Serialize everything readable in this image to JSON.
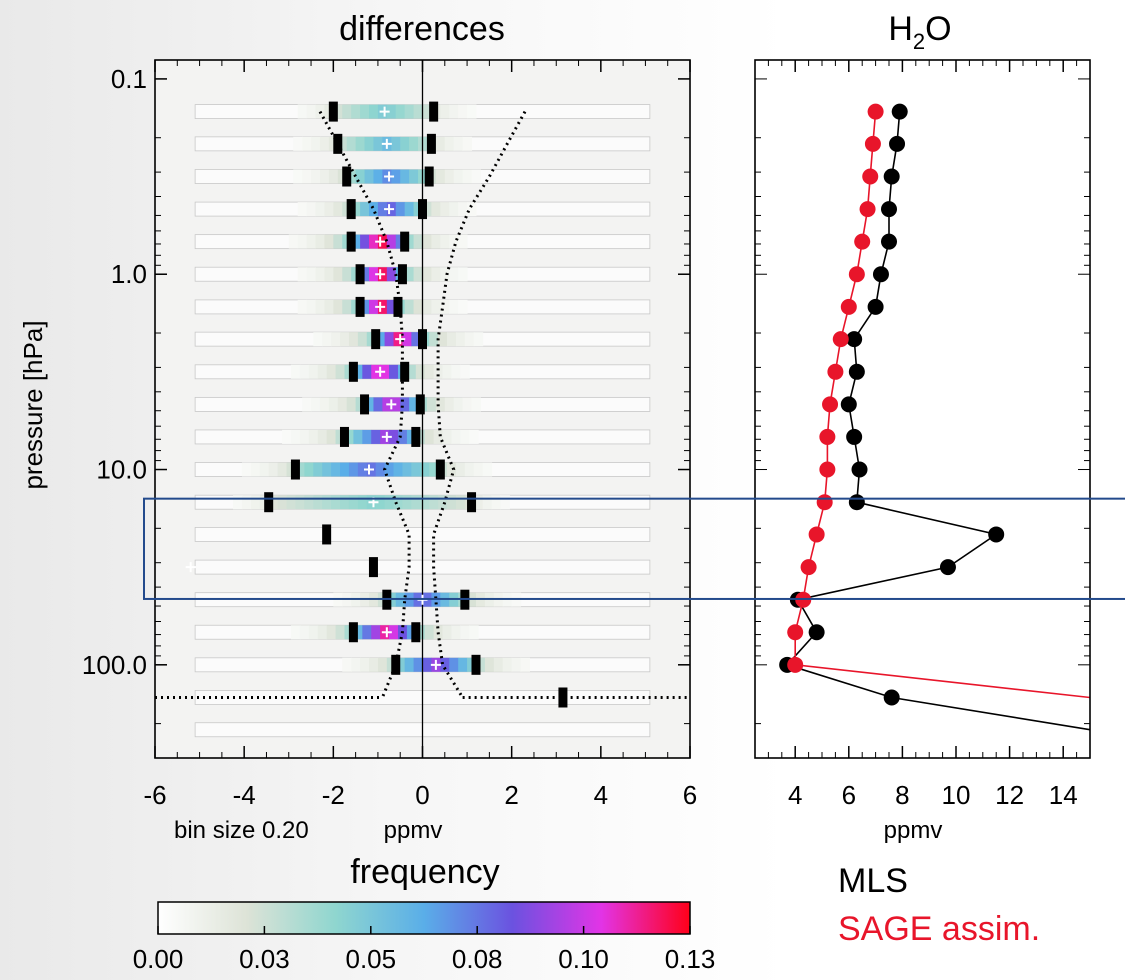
{
  "chart_data": [
    {
      "type": "heatmap",
      "title": "differences",
      "xlabel": "ppmv",
      "ylabel": "pressure [hPa]",
      "note": "bin size 0.20",
      "xlim": [
        -6,
        6
      ],
      "ylim_log_pressure": [
        0.08,
        300
      ],
      "x_ticks": [
        "-6",
        "-4",
        "-2",
        "0",
        "2",
        "4",
        "6"
      ],
      "y_ticks": [
        {
          "p": 0.1,
          "label": "0.1"
        },
        {
          "p": 1.0,
          "label": "1.0"
        },
        {
          "p": 10.0,
          "label": "10.0"
        },
        {
          "p": 100.0,
          "label": "100.0"
        }
      ],
      "levels": [
        {
          "p": 0.147,
          "q_lo": -2.0,
          "q_hi": 0.25,
          "mean": -0.85,
          "freq": 0.05
        },
        {
          "p": 0.215,
          "q_lo": -1.9,
          "q_hi": 0.2,
          "mean": -0.8,
          "freq": 0.058
        },
        {
          "p": 0.316,
          "q_lo": -1.7,
          "q_hi": 0.15,
          "mean": -0.75,
          "freq": 0.075
        },
        {
          "p": 0.464,
          "q_lo": -1.6,
          "q_hi": 0.0,
          "mean": -0.75,
          "freq": 0.085
        },
        {
          "p": 0.681,
          "q_lo": -1.6,
          "q_hi": -0.4,
          "mean": -0.95,
          "freq": 0.13
        },
        {
          "p": 1.0,
          "q_lo": -1.4,
          "q_hi": -0.45,
          "mean": -0.95,
          "freq": 0.13
        },
        {
          "p": 1.47,
          "q_lo": -1.4,
          "q_hi": -0.55,
          "mean": -0.95,
          "freq": 0.13
        },
        {
          "p": 2.15,
          "q_lo": -1.05,
          "q_hi": 0.0,
          "mean": -0.5,
          "freq": 0.125
        },
        {
          "p": 3.16,
          "q_lo": -1.55,
          "q_hi": -0.4,
          "mean": -0.95,
          "freq": 0.12
        },
        {
          "p": 4.64,
          "q_lo": -1.3,
          "q_hi": -0.05,
          "mean": -0.7,
          "freq": 0.11
        },
        {
          "p": 6.81,
          "q_lo": -1.75,
          "q_hi": -0.15,
          "mean": -0.8,
          "freq": 0.1
        },
        {
          "p": 10.0,
          "q_lo": -2.85,
          "q_hi": 0.4,
          "mean": -1.2,
          "freq": 0.08
        },
        {
          "p": 14.7,
          "q_lo": -3.45,
          "q_hi": 1.1,
          "mean": -1.1,
          "freq": 0.045
        },
        {
          "p": 21.5,
          "q_lo": -2.15,
          "q_hi": null,
          "mean": null,
          "freq": 0.01
        },
        {
          "p": 31.6,
          "q_lo": -1.1,
          "q_hi": null,
          "mean": -5.2,
          "freq": 0.01
        },
        {
          "p": 46.4,
          "q_lo": -0.8,
          "q_hi": 0.95,
          "mean": 0.0,
          "freq": 0.085
        },
        {
          "p": 68.1,
          "q_lo": -1.55,
          "q_hi": -0.15,
          "mean": -0.8,
          "freq": 0.12
        },
        {
          "p": 100.0,
          "q_lo": -0.6,
          "q_hi": 1.2,
          "mean": 0.3,
          "freq": 0.095
        },
        {
          "p": 147.0,
          "q_lo": 3.15,
          "q_hi": null,
          "mean": null,
          "freq": 0.0
        },
        {
          "p": 215.0,
          "q_lo": null,
          "q_hi": null,
          "mean": null,
          "freq": 0.0
        }
      ],
      "error_bounds": {
        "p": [
          0.147,
          0.215,
          0.316,
          0.464,
          0.681,
          1.0,
          1.47,
          2.15,
          3.16,
          4.64,
          6.81,
          10.0,
          14.7,
          21.5,
          31.6,
          46.4,
          68.1,
          100.0,
          147.0
        ],
        "left": [
          -2.3,
          -1.9,
          -1.5,
          -1.1,
          -0.8,
          -0.6,
          -0.5,
          -0.45,
          -0.45,
          -0.45,
          -0.5,
          -0.85,
          -0.6,
          -0.3,
          -0.3,
          -0.4,
          -0.45,
          -0.6,
          -0.9
        ],
        "right": [
          2.3,
          1.9,
          1.5,
          1.05,
          0.75,
          0.55,
          0.45,
          0.35,
          0.35,
          0.35,
          0.4,
          0.7,
          0.5,
          0.25,
          0.25,
          0.3,
          0.35,
          0.45,
          0.9
        ]
      },
      "horizontal_dotted_line_p": 147.0
    },
    {
      "type": "line",
      "title": "H2O",
      "title_base": "H",
      "title_sub": "2",
      "title_tail": "O",
      "xlabel": "ppmv",
      "xlim": [
        2.5,
        15
      ],
      "x_ticks": [
        "4",
        "6",
        "8",
        "10",
        "12",
        "14"
      ],
      "series": [
        {
          "name": "MLS",
          "color": "#000000",
          "p": [
            0.147,
            0.215,
            0.316,
            0.464,
            0.681,
            1.0,
            1.47,
            2.15,
            3.16,
            4.64,
            6.81,
            10.0,
            14.7,
            21.5,
            31.6,
            46.4,
            68.1,
            100.0,
            147.0,
            215.0
          ],
          "values": [
            7.9,
            7.8,
            7.6,
            7.5,
            7.5,
            7.2,
            7.0,
            6.2,
            6.3,
            6.0,
            6.2,
            6.4,
            6.3,
            11.5,
            9.7,
            4.1,
            4.8,
            3.7,
            7.6,
            15.0
          ],
          "markers": [
            true,
            true,
            true,
            true,
            true,
            true,
            true,
            true,
            true,
            true,
            true,
            true,
            true,
            true,
            true,
            true,
            true,
            true,
            true,
            false
          ]
        },
        {
          "name": "SAGE assim.",
          "color": "#e8152a",
          "p": [
            0.147,
            0.215,
            0.316,
            0.464,
            0.681,
            1.0,
            1.47,
            2.15,
            3.16,
            4.64,
            6.81,
            10.0,
            14.7,
            21.5,
            31.6,
            46.4,
            68.1,
            100.0,
            147.0
          ],
          "values": [
            7.0,
            6.9,
            6.8,
            6.7,
            6.5,
            6.3,
            6.0,
            5.7,
            5.5,
            5.3,
            5.2,
            5.2,
            5.1,
            4.8,
            4.5,
            4.3,
            4.0,
            4.0,
            15.0
          ],
          "markers": [
            true,
            true,
            true,
            true,
            true,
            true,
            true,
            true,
            true,
            true,
            true,
            true,
            true,
            true,
            true,
            true,
            true,
            true,
            false
          ]
        }
      ]
    }
  ],
  "colorbar": {
    "label": "frequency",
    "ticks": [
      "0.00",
      "0.03",
      "0.05",
      "0.08",
      "0.10",
      "0.13"
    ],
    "range": [
      0.0,
      0.13
    ],
    "stops": [
      "#ffffff",
      "#dde3d7",
      "#8fd6cf",
      "#5aaee8",
      "#6b52e0",
      "#e234e6",
      "#ff0019"
    ]
  },
  "legend": {
    "mls": {
      "label": "MLS",
      "color": "#000000"
    },
    "sage": {
      "label": "SAGE assim.",
      "color": "#e8152a"
    }
  },
  "highlight_box": {
    "p_top": 14.1,
    "p_bottom": 46.0,
    "color": "#234a8c"
  }
}
